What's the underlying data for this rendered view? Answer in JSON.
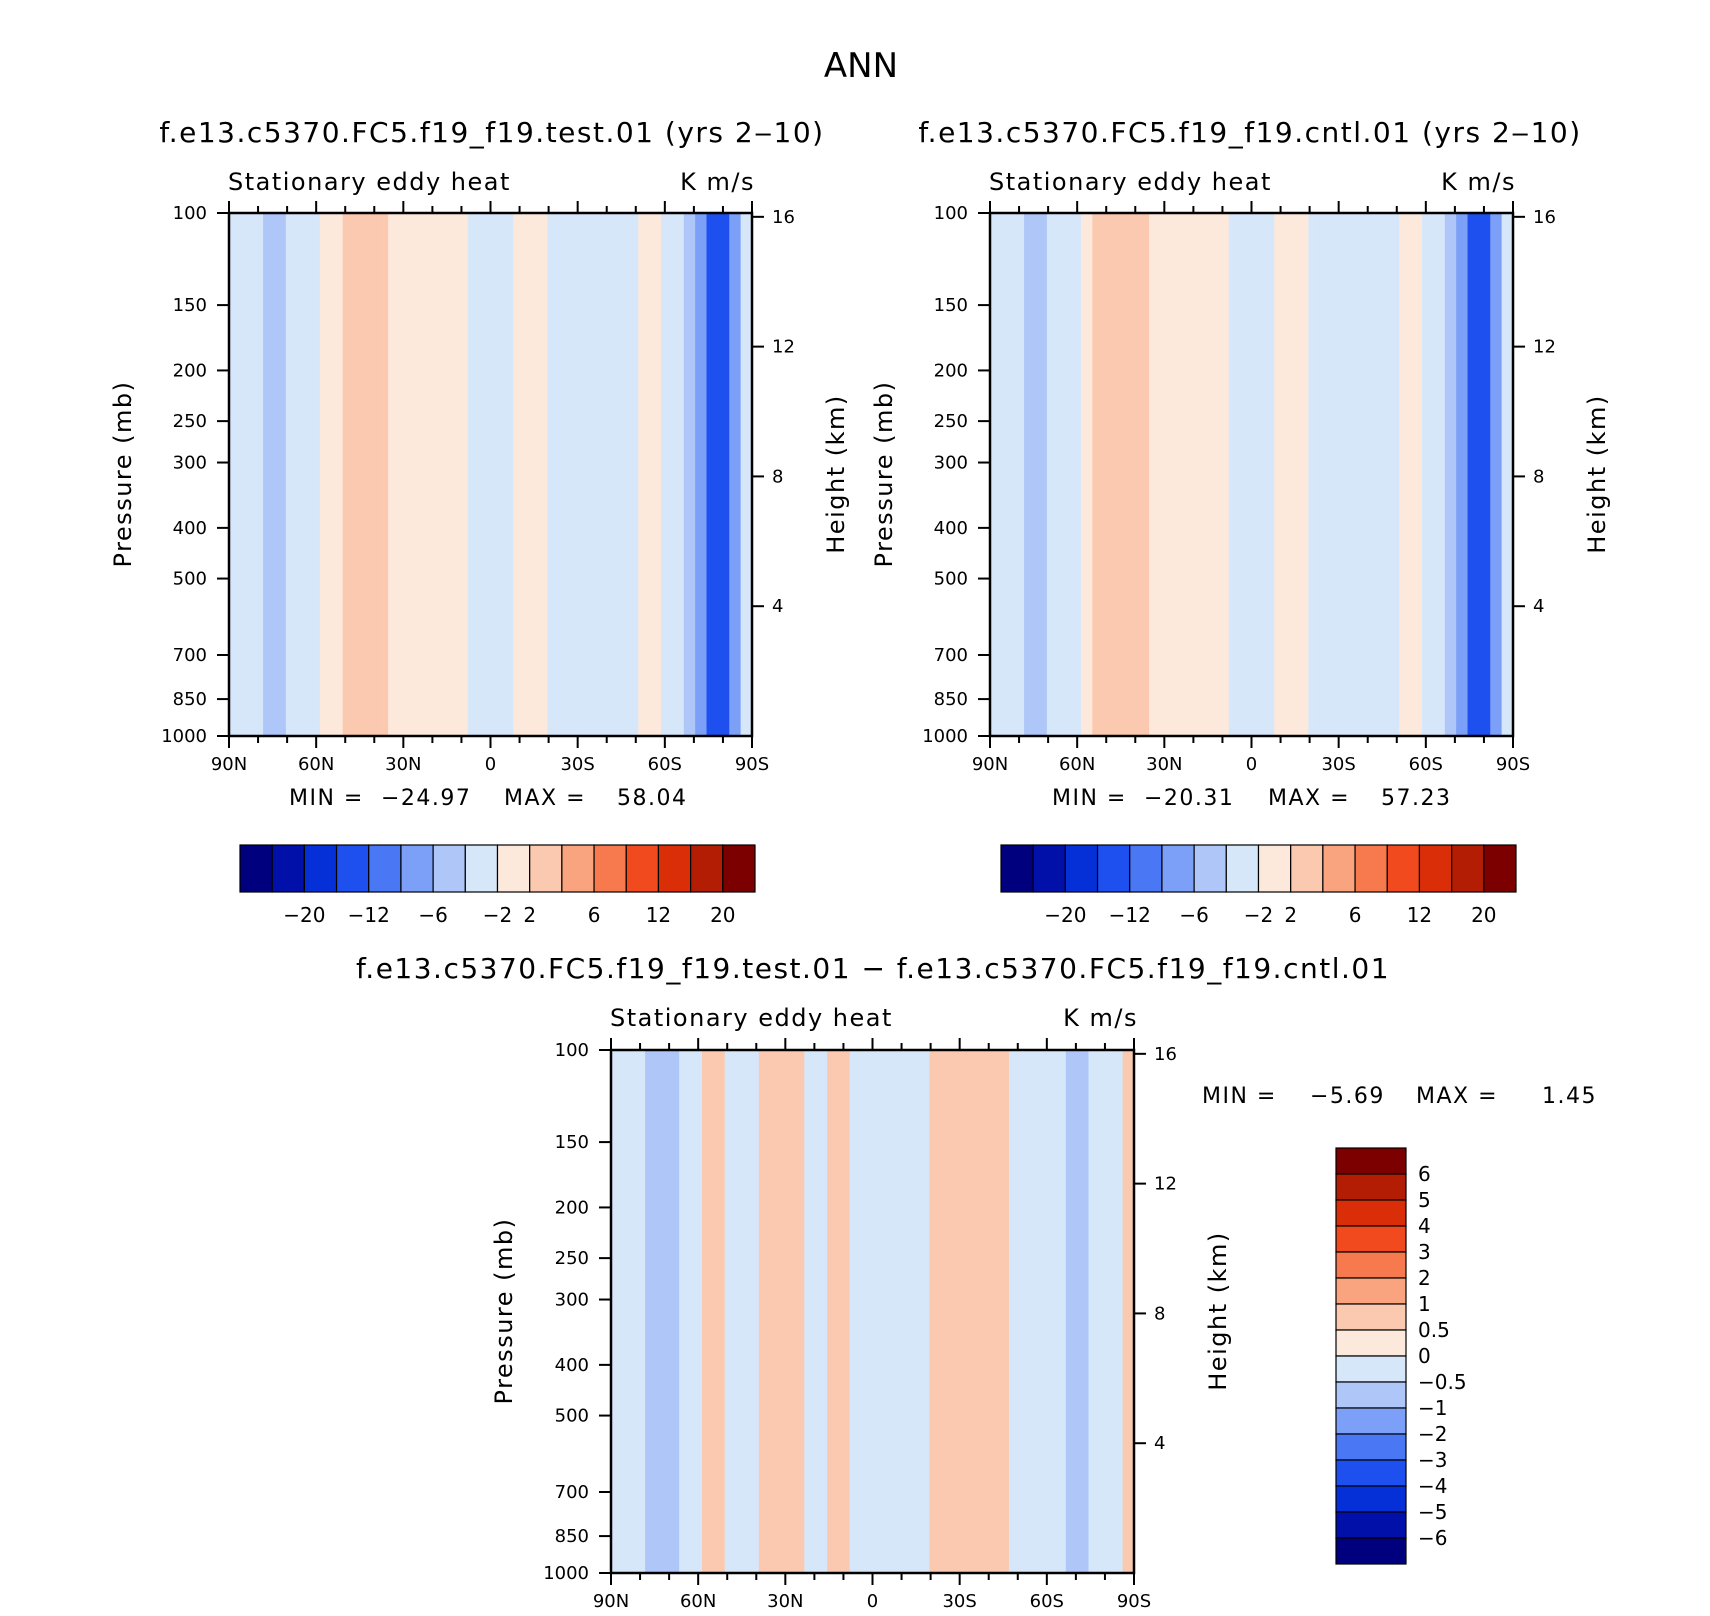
{
  "chart_data": {
    "type": "heatmap",
    "title": "ANN",
    "panels": [
      {
        "title": "f.e13.c5370.FC5.f19_f19.test.01 (yrs 2‒10)",
        "left_label": "Stationary eddy heat",
        "right_label": "K m/s",
        "ylabel": "Pressure (mb)",
        "y2label": "Height (km)",
        "yticks": [
          "100",
          "150",
          "200",
          "250",
          "300",
          "400",
          "500",
          "700",
          "850",
          "1000"
        ],
        "y2ticks": [
          "16",
          "12",
          "8",
          "4"
        ],
        "xticks": [
          "90N",
          "60N",
          "30N",
          "0",
          "30S",
          "60S",
          "90S"
        ],
        "min_label": "MIN =",
        "min_value": "−24.97",
        "max_label": "MAX =",
        "max_value": "58.04",
        "colorbar_labels": [
          "−20",
          "−12",
          "−6",
          "−2",
          "2",
          "6",
          "12",
          "20"
        ],
        "columns": [
          -0.5,
          -1,
          -1,
          -3,
          -3,
          -2,
          -1,
          -0.5,
          0.5,
          1,
          2,
          3,
          3,
          2,
          1,
          0.5,
          0.5,
          1,
          1,
          0.5,
          0.5,
          -0.5,
          -0.5,
          -1,
          -0.5,
          0.5,
          0.5,
          0.5,
          -0.5,
          -0.5,
          -0.5,
          -0.5,
          -0.5,
          -0.5,
          -0.5,
          -0.5,
          0.5,
          0.5,
          -0.5,
          -2,
          -3,
          -6,
          -12,
          -12,
          -6,
          -2
        ]
      },
      {
        "title": "f.e13.c5370.FC5.f19_f19.cntl.01 (yrs 2‒10)",
        "left_label": "Stationary eddy heat",
        "right_label": "K m/s",
        "ylabel": "Pressure (mb)",
        "y2label": "Height (km)",
        "yticks": [
          "100",
          "150",
          "200",
          "250",
          "300",
          "400",
          "500",
          "700",
          "850",
          "1000"
        ],
        "y2ticks": [
          "16",
          "12",
          "8",
          "4"
        ],
        "xticks": [
          "90N",
          "60N",
          "30N",
          "0",
          "30S",
          "60S",
          "90S"
        ],
        "min_label": "MIN =",
        "min_value": "−20.31",
        "max_label": "MAX =",
        "max_value": "57.23",
        "colorbar_labels": [
          "−20",
          "−12",
          "−6",
          "−2",
          "2",
          "6",
          "12",
          "20"
        ],
        "columns": [
          -0.5,
          -1,
          -1,
          -3,
          -3,
          -2,
          -1,
          -0.5,
          0.5,
          2,
          3,
          3,
          3,
          2,
          1,
          0.5,
          0.5,
          1,
          1,
          0.5,
          0.5,
          -0.5,
          -0.5,
          -1,
          -0.5,
          0.5,
          0.5,
          0.5,
          -0.5,
          -0.5,
          -0.5,
          -0.5,
          -0.5,
          -0.5,
          -0.5,
          -0.5,
          0.5,
          0.5,
          -0.5,
          -2,
          -3,
          -6,
          -12,
          -12,
          -6,
          -2
        ]
      },
      {
        "title": "f.e13.c5370.FC5.f19_f19.test.01 − f.e13.c5370.FC5.f19_f19.cntl.01",
        "left_label": "Stationary eddy heat",
        "right_label": "K m/s",
        "ylabel": "Pressure (mb)",
        "y2label": "Height (km)",
        "yticks": [
          "100",
          "150",
          "200",
          "250",
          "300",
          "400",
          "500",
          "700",
          "850",
          "1000"
        ],
        "y2ticks": [
          "16",
          "12",
          "8",
          "4"
        ],
        "xticks": [
          "90N",
          "60N",
          "30N",
          "0",
          "30S",
          "60S",
          "90S"
        ],
        "min_label": "MIN =",
        "min_value": "−5.69",
        "max_label": "MAX =",
        "max_value": "1.45",
        "colorbar_labels": [
          "6",
          "5",
          "4",
          "3",
          "2",
          "1",
          "0.5",
          "0",
          "−0.5",
          "−1",
          "−2",
          "−3",
          "−4",
          "−5",
          "−6"
        ],
        "columns": [
          -0.5,
          -0.5,
          -0.5,
          -1,
          -1,
          -1,
          -0.5,
          -0.5,
          0.5,
          0.5,
          -0.5,
          -0.5,
          -0.5,
          0.5,
          0.5,
          0.5,
          0.5,
          -0.5,
          -0.5,
          0.5,
          0.5,
          -0.5,
          -0.5,
          -0.5,
          -0.5,
          -0.5,
          -0.5,
          -0.5,
          0.5,
          0.5,
          0.5,
          0.5,
          0.5,
          0.5,
          0.5,
          -0.5,
          -0.5,
          -0.5,
          -0.5,
          -0.5,
          -1,
          -1,
          -0.5,
          -0.5,
          -0.5,
          0.5
        ]
      }
    ],
    "colors": {
      "full": [
        "#00007f",
        "#0010a8",
        "#0530d8",
        "#1e50f0",
        "#4a78f5",
        "#7ca0f7",
        "#aec6f8",
        "#d7e7fa",
        "#fde9dc",
        "#fbc9b0",
        "#f9a47f",
        "#f77a4e",
        "#f24a1f",
        "#d92e08",
        "#b31d03",
        "#7d0000"
      ],
      "diff": [
        "#7d0000",
        "#b31d03",
        "#d92e08",
        "#f24a1f",
        "#f77a4e",
        "#f9a47f",
        "#fbc9b0",
        "#fde9dc",
        "#d7e7fa",
        "#aec6f8",
        "#7ca0f7",
        "#4a78f5",
        "#1e50f0",
        "#0530d8",
        "#0010a8",
        "#00007f"
      ]
    }
  }
}
